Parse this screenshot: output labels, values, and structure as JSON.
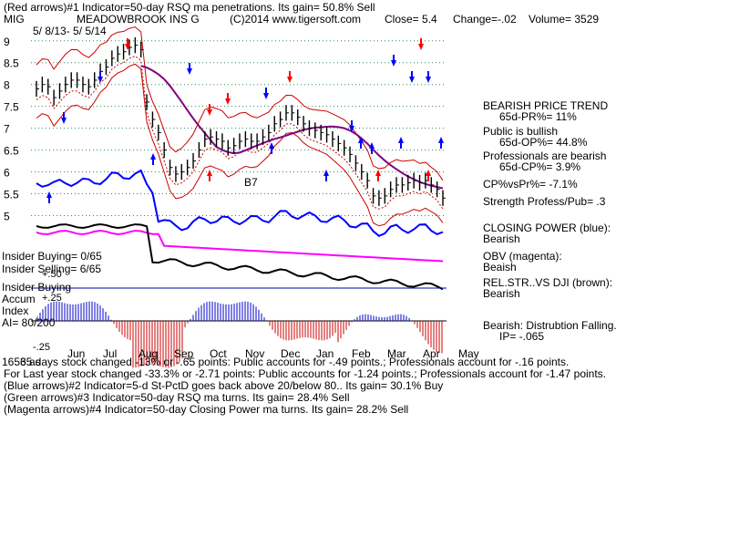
{
  "header": {
    "line1": "(Red arrows)#1 Indicator=50-day RSQ ma penetrations. Its gain= 50.8% Sell",
    "ticker": "MIG",
    "company": "MEADOWBROOK INS G",
    "copyright": "(C)2014 www.tigersoft.com",
    "close": "Close= 5.4",
    "change": "Change=-.02",
    "volume": "Volume= 3529",
    "date_range": "5/ 8/13- 5/ 5/14"
  },
  "chart_data": {
    "type": "line",
    "title": "MEADOWBROOK INS G",
    "price_ticks": [
      "9",
      "8.5",
      "8",
      "7.5",
      "7",
      "6.5",
      "6",
      "5.5",
      "5"
    ],
    "price_tick_values": [
      9,
      8.5,
      8,
      7.5,
      7,
      6.5,
      6,
      5.5,
      5
    ],
    "ylim": [
      4.55,
      9.1
    ],
    "month_labels": [
      "Jun",
      "Jul",
      "Aug",
      "Sep",
      "Oct",
      "Nov",
      "Dec",
      "Jan",
      "Feb",
      "Mar",
      "Apr",
      "May"
    ],
    "accum_ticks": [
      "+.50",
      "+.25",
      "-.25"
    ],
    "price": [
      7.9,
      8.0,
      7.95,
      7.7,
      7.85,
      8.0,
      8.1,
      8.1,
      8.0,
      7.95,
      8.1,
      8.3,
      8.4,
      8.6,
      8.7,
      8.75,
      8.85,
      8.9,
      8.8,
      7.6,
      7.2,
      6.9,
      6.5,
      6.1,
      5.95,
      6.0,
      6.1,
      6.25,
      6.5,
      6.75,
      6.8,
      6.75,
      6.7,
      6.55,
      6.6,
      6.7,
      6.75,
      6.7,
      6.7,
      6.8,
      6.9,
      7.1,
      7.2,
      7.35,
      7.35,
      7.25,
      7.1,
      7.0,
      6.95,
      6.9,
      6.85,
      6.75,
      6.65,
      6.55,
      6.4,
      6.2,
      6.0,
      5.8,
      5.45,
      5.4,
      5.45,
      5.6,
      5.7,
      5.7,
      5.75,
      5.8,
      5.75,
      5.8,
      5.7,
      5.6,
      5.4
    ],
    "annotations": [
      "B7"
    ],
    "series": [
      {
        "name": "CLOSING POWER",
        "color": "#0000ff"
      },
      {
        "name": "OBV",
        "color": "#ff00ff"
      },
      {
        "name": "REL.STR..VS DJI",
        "color": "#8b4513"
      }
    ],
    "red_arrows_down_x": [
      140,
      230,
      250,
      318,
      462
    ],
    "red_arrows_up_x": [
      230,
      470,
      415
    ]
  },
  "right_panel": {
    "trend_title": "BEARISH PRICE TREND",
    "trend_pr": "65d-PR%= 11%",
    "public_title": "Public is bullish",
    "public_op": "65d-OP%= 44.8%",
    "pros_title": "Professionals are bearish",
    "pros_cp": "65d-CP%= 3.9%",
    "cp_vs_pr": "CP%vsPr%= -7.1%",
    "strength": "Strength Profess/Pub= .3",
    "closing_power_title": "CLOSING POWER (blue):",
    "closing_power_state": "Bearish",
    "obv_title": "OBV (magenta):",
    "obv_state": "Beaish",
    "relstr_title": "REL.STR..VS DJI (brown):",
    "relstr_state": "Bearish",
    "distribution": "Bearish: Distrubtion Falling.",
    "ip": "IP= -.065"
  },
  "left_panel": {
    "insider_buying": "Insider Buying= 0/65",
    "insider_selling": "Insider Selling= 6/65",
    "insider_buying_label": "Insider Buying",
    "accum": "Accum",
    "index": "Index",
    "ai": "AI= 80/200"
  },
  "footer": {
    "line1": "65 days stock changed -13% or -.65 points:  Public accounts for -.49 points.;  Professionals account for -.16 points.",
    "line1_prefix": "1653 as",
    "line2": "For Last year stock changed -33.3% or -2.71 points:  Public accounts for -1.24 points.;  Professionals account for -1.47 points.",
    "line3": "(Blue arrows)#2 Indicator=5-d St-PctD goes back above 20/below 80.. Its gain= 30.1% Buy",
    "line4": "(Green arrows)#3 Indicator=50-day RSQ ma turns. Its gain= 28.4% Sell",
    "line5": "(Magenta arrows)#4 Indicator=50-day Closing Power ma turns. Its gain= 28.2% Sell"
  }
}
